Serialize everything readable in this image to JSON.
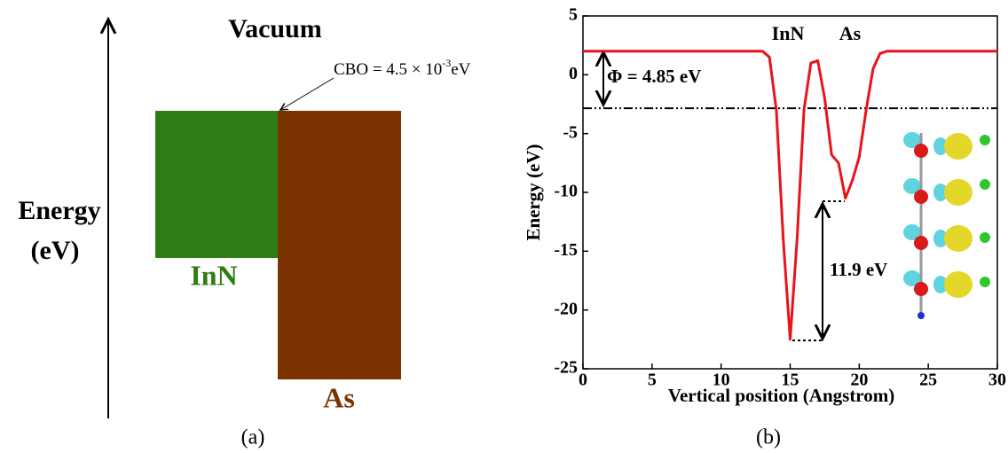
{
  "diagram": {
    "vacuum": "Vacuum",
    "cbo": [
      "CBO = 4.5 × 10",
      "-3",
      "eV"
    ],
    "energy_label": [
      "Energy",
      "(eV)"
    ],
    "left_material": "InN",
    "right_material": "As",
    "caption": "(a)"
  },
  "chart_data": {
    "type": "line",
    "caption": "(b)",
    "x_label": "Vertical position (Angstrom)",
    "y_label": "Energy (eV)",
    "x": [
      0,
      13,
      13.5,
      14,
      14.5,
      15,
      15.5,
      16,
      16.5,
      17,
      17.5,
      18,
      18.5,
      19,
      19.5,
      20,
      20.5,
      21,
      21.5,
      22,
      23,
      30
    ],
    "values": [
      2,
      2,
      1.5,
      -3,
      -14,
      -22.5,
      -14,
      -3,
      1,
      1.2,
      -2,
      -6.8,
      -7.5,
      -10.5,
      -9,
      -7,
      -3,
      0.5,
      1.8,
      2,
      2,
      2
    ],
    "color": "#e8141b",
    "reference_line": -2.85,
    "xlim": [
      0,
      30
    ],
    "xticks": [
      0,
      5,
      10,
      15,
      20,
      25,
      30
    ],
    "ylim": [
      -25,
      5
    ],
    "yticks": [
      5,
      0,
      -5,
      -10,
      -15,
      -20,
      -25
    ],
    "annotations": [
      "InN",
      "As",
      "Φ = 4.85 eV",
      "11.9 eV"
    ]
  }
}
